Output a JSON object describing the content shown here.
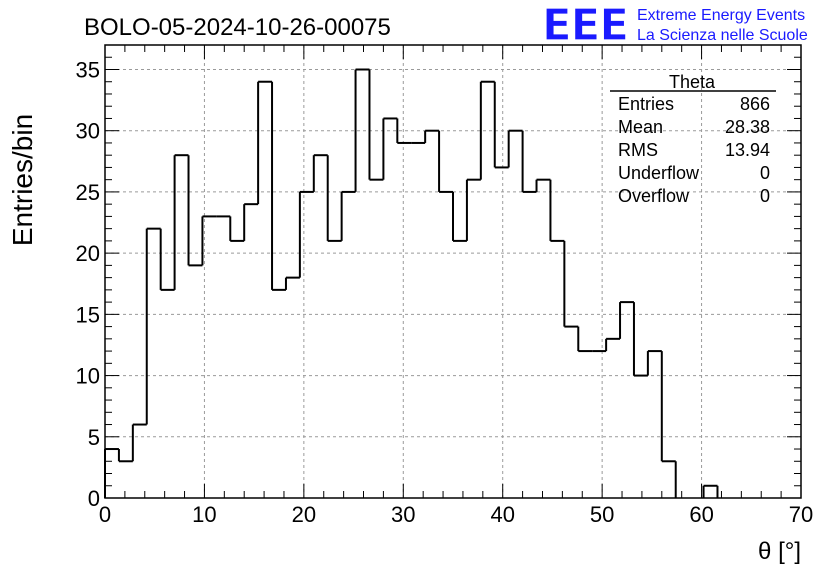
{
  "chart_data": {
    "type": "histogram",
    "title": "BOLO-05-2024-10-26-00075",
    "xlabel": "θ [°]",
    "ylabel": "Entries/bin",
    "xlim": [
      0,
      70
    ],
    "ylim": [
      0,
      37
    ],
    "x_ticks": [
      0,
      10,
      20,
      30,
      40,
      50,
      60,
      70
    ],
    "y_ticks": [
      0,
      5,
      10,
      15,
      20,
      25,
      30,
      35
    ],
    "grid": true,
    "bin_width": 1.4,
    "bin_edges_start": 0,
    "values": [
      4,
      3,
      6,
      22,
      17,
      28,
      19,
      23,
      23,
      21,
      24,
      34,
      17,
      18,
      25,
      28,
      21,
      25,
      35,
      26,
      31,
      29,
      29,
      30,
      25,
      21,
      26,
      34,
      27,
      30,
      25,
      26,
      21,
      14,
      12,
      12,
      13,
      16,
      10,
      12,
      3,
      0,
      0,
      1,
      0,
      0,
      0,
      0,
      0,
      0
    ],
    "stats_box": {
      "name": "Theta",
      "rows": [
        {
          "label": "Entries",
          "value": "866"
        },
        {
          "label": "Mean",
          "value": "28.38"
        },
        {
          "label": "RMS",
          "value": "13.94"
        },
        {
          "label": "Underflow",
          "value": "0"
        },
        {
          "label": "Overflow",
          "value": "0"
        }
      ]
    }
  },
  "logo": {
    "text": "EEE",
    "line1": "Extreme Energy Events",
    "line2": "La Scienza nelle Scuole",
    "color": "#1a1aff"
  },
  "colors": {
    "histogram_line": "#000000",
    "grid": "#9a9a9a",
    "logo_blue": "#1a1aff"
  }
}
